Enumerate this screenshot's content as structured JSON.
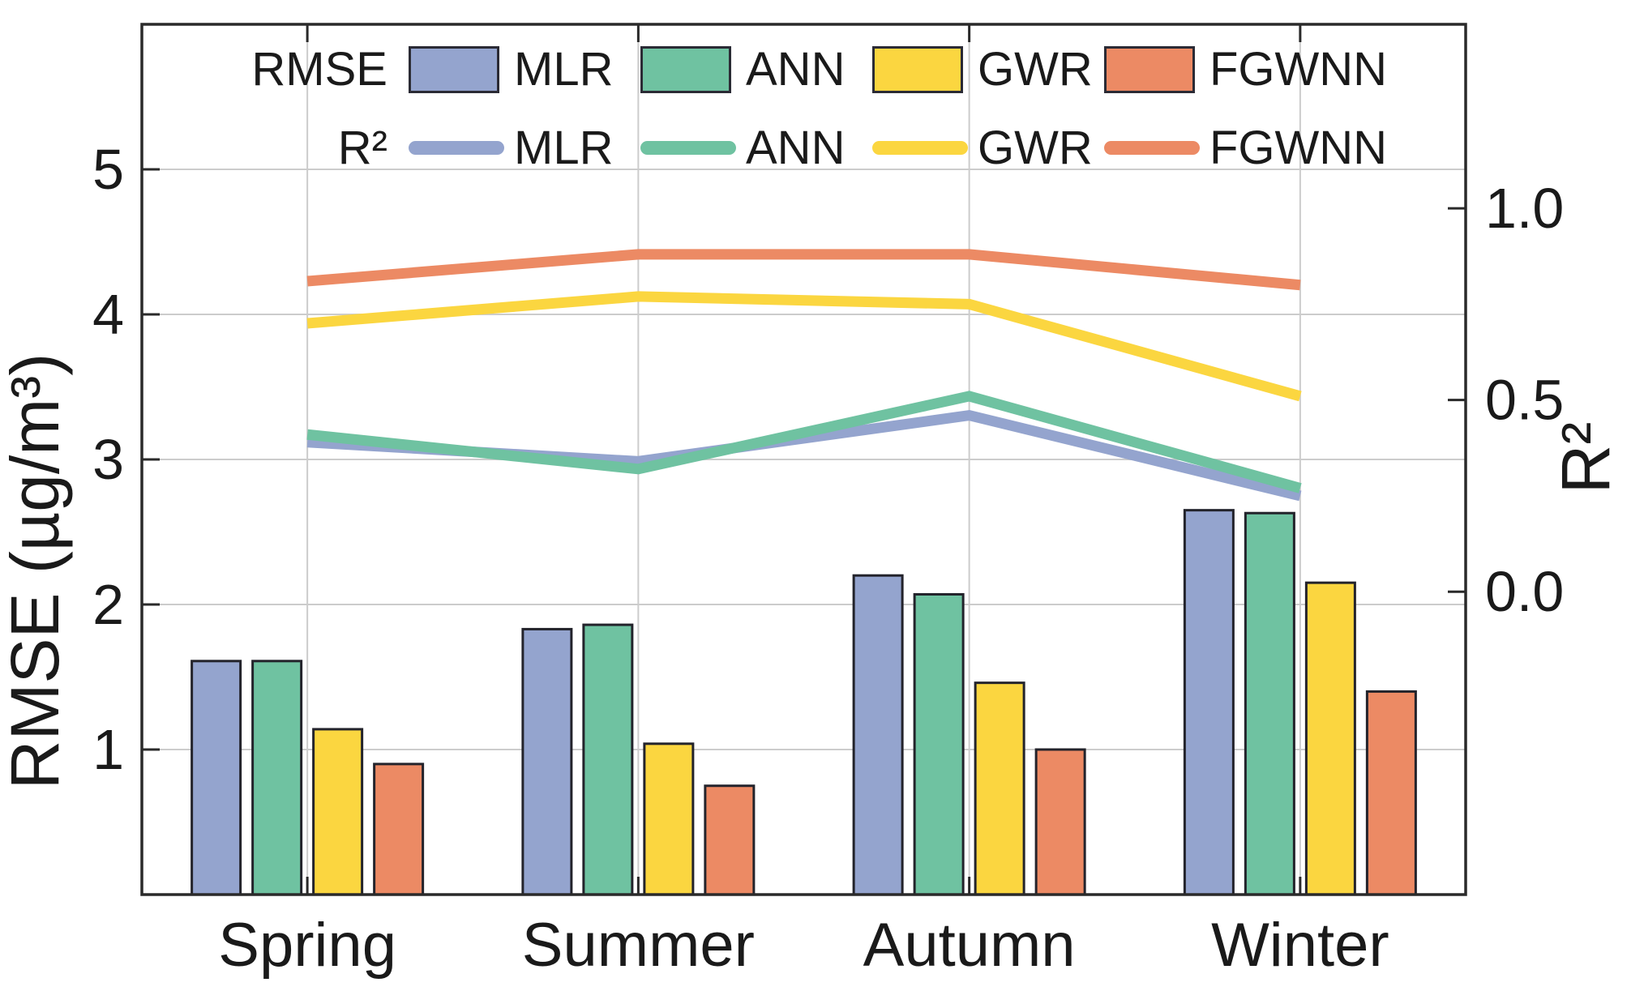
{
  "chart_data": {
    "type": "bar",
    "subtype": "grouped-bars-with-dual-axis-lines",
    "categories": [
      "Spring",
      "Summer",
      "Autumn",
      "Winter"
    ],
    "bar_series": [
      {
        "name": "MLR",
        "color": "#94a4ce",
        "values": [
          1.61,
          1.83,
          2.2,
          2.65
        ]
      },
      {
        "name": "ANN",
        "color": "#6fc2a1",
        "values": [
          1.61,
          1.86,
          2.07,
          2.63
        ]
      },
      {
        "name": "GWR",
        "color": "#fbd640",
        "values": [
          1.14,
          1.04,
          1.46,
          2.15
        ]
      },
      {
        "name": "FGWNN",
        "color": "#ec8a64",
        "values": [
          0.9,
          0.75,
          1.0,
          1.4
        ]
      }
    ],
    "line_series": [
      {
        "name": "MLR",
        "color": "#94a4ce",
        "values": [
          0.39,
          0.34,
          0.46,
          0.25
        ]
      },
      {
        "name": "ANN",
        "color": "#6fc2a1",
        "values": [
          0.41,
          0.32,
          0.51,
          0.27
        ]
      },
      {
        "name": "GWR",
        "color": "#fbd640",
        "values": [
          0.7,
          0.77,
          0.75,
          0.51
        ]
      },
      {
        "name": "FGWNN",
        "color": "#ec8a64",
        "values": [
          0.81,
          0.88,
          0.88,
          0.8
        ]
      }
    ],
    "title": "",
    "xlabel": "",
    "ylabel": "RMSE (µg/m³)",
    "y2label": "R²",
    "ylim": [
      0,
      6
    ],
    "y2lim": [
      -0.79,
      1.48
    ],
    "yticks": [
      1,
      2,
      3,
      4,
      5
    ],
    "y2ticks": [
      0.0,
      0.5,
      1.0
    ],
    "grid": true,
    "legend_position": "top-inside"
  },
  "legend": {
    "row1_label": "RMSE",
    "row2_label": "R²",
    "models": [
      "MLR",
      "ANN",
      "GWR",
      "FGWNN"
    ]
  },
  "axis": {
    "left_tick_labels": [
      "1",
      "2",
      "3",
      "4",
      "5"
    ],
    "right_tick_labels": [
      "0.0",
      "0.5",
      "1.0"
    ],
    "category_labels": [
      "Spring",
      "Summer",
      "Autumn",
      "Winter"
    ]
  },
  "colors": {
    "bar_border": "#23232b",
    "axis": "#2a2a2a",
    "gridline": "#cccccc",
    "text": "#1a1a1a",
    "background": "#ffffff"
  }
}
